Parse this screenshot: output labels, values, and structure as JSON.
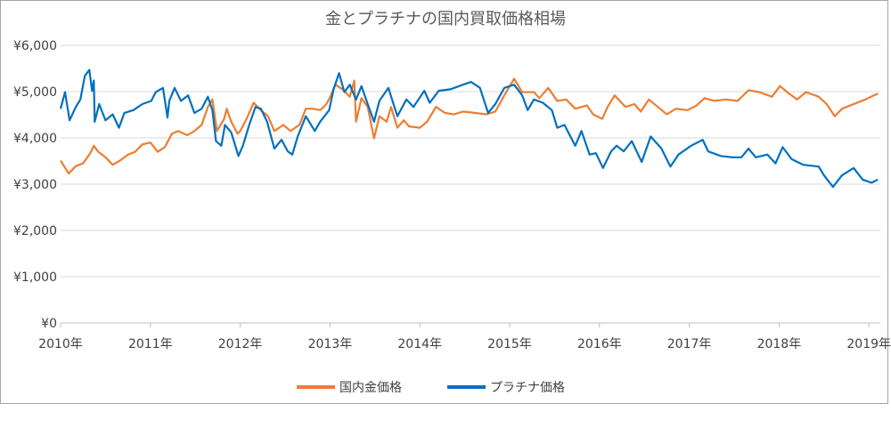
{
  "chart_data": {
    "type": "line",
    "title": "金とプラチナの国内買取価格相場",
    "xlabel": "",
    "ylabel": "",
    "x_unit": "year",
    "xlim": [
      2010,
      2019.12
    ],
    "ylim": [
      0,
      6000
    ],
    "y_ticks": [
      "¥0",
      "¥1,000",
      "¥2,000",
      "¥3,000",
      "¥4,000",
      "¥5,000",
      "¥6,000"
    ],
    "y_tick_values": [
      0,
      1000,
      2000,
      3000,
      4000,
      5000,
      6000
    ],
    "x_ticks": [
      "2010年",
      "2011年",
      "2012年",
      "2013年",
      "2014年",
      "2015年",
      "2016年",
      "2017年",
      "2018年",
      "2019年"
    ],
    "x_tick_values": [
      2010,
      2011,
      2012,
      2013,
      2014,
      2015,
      2016,
      2017,
      2018,
      2019
    ],
    "grid": true,
    "legend": "bottom",
    "series": [
      {
        "name": "国内金価格",
        "color": "#ed7d31",
        "x": [
          2010.0,
          2010.09,
          2010.17,
          2010.25,
          2010.33,
          2010.37,
          2010.42,
          2010.5,
          2010.58,
          2010.66,
          2010.75,
          2010.83,
          2010.91,
          2011.0,
          2011.08,
          2011.16,
          2011.24,
          2011.31,
          2011.41,
          2011.49,
          2011.57,
          2011.64,
          2011.69,
          2011.74,
          2011.82,
          2011.85,
          2011.9,
          2011.97,
          2012.0,
          2012.07,
          2012.15,
          2012.23,
          2012.31,
          2012.38,
          2012.48,
          2012.56,
          2012.66,
          2012.73,
          2012.81,
          2012.89,
          2012.96,
          2013.01,
          2013.06,
          2013.14,
          2013.22,
          2013.27,
          2013.29,
          2013.35,
          2013.42,
          2013.49,
          2013.55,
          2013.63,
          2013.68,
          2013.75,
          2013.82,
          2013.88,
          2014.0,
          2014.08,
          2014.18,
          2014.28,
          2014.38,
          2014.48,
          2014.57,
          2014.74,
          2014.84,
          2014.94,
          2015.05,
          2015.14,
          2015.27,
          2015.33,
          2015.43,
          2015.53,
          2015.63,
          2015.73,
          2015.86,
          2015.93,
          2016.03,
          2016.09,
          2016.17,
          2016.29,
          2016.39,
          2016.46,
          2016.55,
          2016.65,
          2016.75,
          2016.85,
          2016.98,
          2017.08,
          2017.17,
          2017.28,
          2017.41,
          2017.54,
          2017.66,
          2017.78,
          2017.92,
          2018.01,
          2018.11,
          2018.2,
          2018.3,
          2018.44,
          2018.53,
          2018.62,
          2018.7,
          2018.83,
          2018.96,
          2019.1
        ],
        "values": [
          3510,
          3230,
          3390,
          3450,
          3670,
          3830,
          3700,
          3580,
          3420,
          3510,
          3640,
          3700,
          3860,
          3900,
          3700,
          3800,
          4090,
          4150,
          4060,
          4150,
          4280,
          4670,
          4830,
          4150,
          4410,
          4630,
          4350,
          4090,
          4150,
          4410,
          4760,
          4600,
          4470,
          4150,
          4280,
          4150,
          4280,
          4630,
          4630,
          4600,
          4730,
          4920,
          5150,
          5050,
          4890,
          5240,
          4350,
          4860,
          4670,
          3990,
          4470,
          4350,
          4670,
          4220,
          4380,
          4250,
          4220,
          4350,
          4670,
          4540,
          4510,
          4570,
          4550,
          4510,
          4570,
          4920,
          5280,
          4990,
          4990,
          4860,
          5080,
          4800,
          4830,
          4630,
          4700,
          4510,
          4410,
          4670,
          4920,
          4670,
          4730,
          4570,
          4830,
          4670,
          4510,
          4630,
          4600,
          4700,
          4860,
          4800,
          4830,
          4800,
          5030,
          4990,
          4890,
          5120,
          4960,
          4830,
          4990,
          4890,
          4730,
          4470,
          4630,
          4730,
          4830,
          4960
        ]
      },
      {
        "name": "プラチナ価格",
        "color": "#0070c0",
        "x": [
          2010.0,
          2010.05,
          2010.1,
          2010.17,
          2010.22,
          2010.27,
          2010.32,
          2010.35,
          2010.37,
          2010.38,
          2010.43,
          2010.5,
          2010.58,
          2010.65,
          2010.71,
          2010.81,
          2010.91,
          2011.01,
          2011.06,
          2011.14,
          2011.19,
          2011.21,
          2011.27,
          2011.34,
          2011.42,
          2011.49,
          2011.57,
          2011.64,
          2011.69,
          2011.73,
          2011.79,
          2011.83,
          2011.9,
          2011.98,
          2012.03,
          2012.1,
          2012.17,
          2012.23,
          2012.3,
          2012.38,
          2012.46,
          2012.53,
          2012.58,
          2012.64,
          2012.73,
          2012.83,
          2012.89,
          2012.99,
          2013.04,
          2013.1,
          2013.16,
          2013.22,
          2013.29,
          2013.35,
          2013.42,
          2013.49,
          2013.55,
          2013.65,
          2013.75,
          2013.85,
          2013.93,
          2014.05,
          2014.11,
          2014.21,
          2014.34,
          2014.48,
          2014.57,
          2014.67,
          2014.76,
          2014.84,
          2014.94,
          2015.05,
          2015.14,
          2015.2,
          2015.27,
          2015.37,
          2015.47,
          2015.53,
          2015.61,
          2015.73,
          2015.8,
          2015.89,
          2015.96,
          2016.04,
          2016.13,
          2016.19,
          2016.27,
          2016.36,
          2016.47,
          2016.57,
          2016.69,
          2016.79,
          2016.88,
          2017.02,
          2017.15,
          2017.21,
          2017.35,
          2017.48,
          2017.58,
          2017.66,
          2017.74,
          2017.87,
          2017.96,
          2018.04,
          2018.14,
          2018.27,
          2018.44,
          2018.5,
          2018.6,
          2018.7,
          2018.83,
          2018.93,
          2019.03,
          2019.1
        ],
        "values": [
          4630,
          4990,
          4380,
          4670,
          4830,
          5340,
          5470,
          5020,
          5240,
          4350,
          4730,
          4380,
          4510,
          4220,
          4540,
          4600,
          4730,
          4800,
          4990,
          5080,
          4440,
          4800,
          5080,
          4800,
          4920,
          4540,
          4630,
          4890,
          4600,
          3930,
          3830,
          4280,
          4120,
          3610,
          3830,
          4280,
          4670,
          4630,
          4350,
          3770,
          3960,
          3710,
          3640,
          4030,
          4470,
          4150,
          4350,
          4600,
          5050,
          5400,
          4990,
          5150,
          4830,
          5120,
          4730,
          4350,
          4800,
          5080,
          4470,
          4830,
          4670,
          5020,
          4760,
          5020,
          5050,
          5150,
          5210,
          5080,
          4540,
          4730,
          5080,
          5150,
          4920,
          4600,
          4830,
          4760,
          4600,
          4220,
          4280,
          3830,
          4150,
          3640,
          3670,
          3350,
          3710,
          3830,
          3710,
          3930,
          3480,
          4030,
          3770,
          3380,
          3640,
          3830,
          3960,
          3710,
          3610,
          3580,
          3580,
          3770,
          3580,
          3640,
          3450,
          3800,
          3540,
          3420,
          3380,
          3190,
          2940,
          3190,
          3350,
          3100,
          3030,
          3100
        ]
      }
    ]
  }
}
